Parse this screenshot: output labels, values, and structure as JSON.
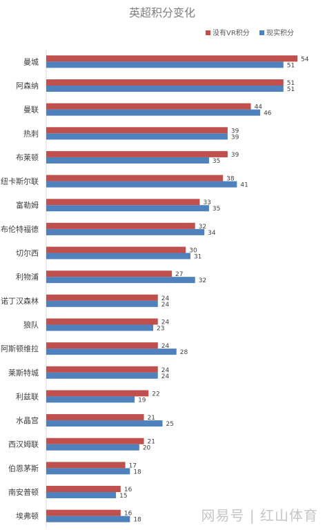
{
  "chart_data": {
    "type": "bar",
    "orientation": "horizontal",
    "title": "英超积分变化",
    "categories": [
      "曼城",
      "阿森纳",
      "曼联",
      "热刺",
      "布莱顿",
      "纽卡斯尔联",
      "富勒姆",
      "布伦特福德",
      "切尔西",
      "利物浦",
      "诺丁汉森林",
      "狼队",
      "阿斯顿维拉",
      "莱斯特城",
      "利兹联",
      "水晶宫",
      "西汉姆联",
      "伯恩茅斯",
      "南安普顿",
      "埃弗顿"
    ],
    "series": [
      {
        "name": "没有VR积分",
        "color": "#C0504D",
        "values": [
          54,
          51,
          44,
          39,
          39,
          38,
          33,
          32,
          30,
          27,
          24,
          24,
          24,
          24,
          22,
          21,
          21,
          17,
          16,
          16
        ]
      },
      {
        "name": "现实积分",
        "color": "#4F81BD",
        "values": [
          51,
          51,
          46,
          39,
          35,
          41,
          35,
          34,
          31,
          32,
          24,
          23,
          28,
          24,
          19,
          25,
          20,
          18,
          15,
          18
        ]
      }
    ],
    "xlim": [
      0,
      55
    ],
    "grid": false,
    "legend_position": "top-right",
    "data_labels": true
  },
  "watermark": "网易号 | 红山体育"
}
